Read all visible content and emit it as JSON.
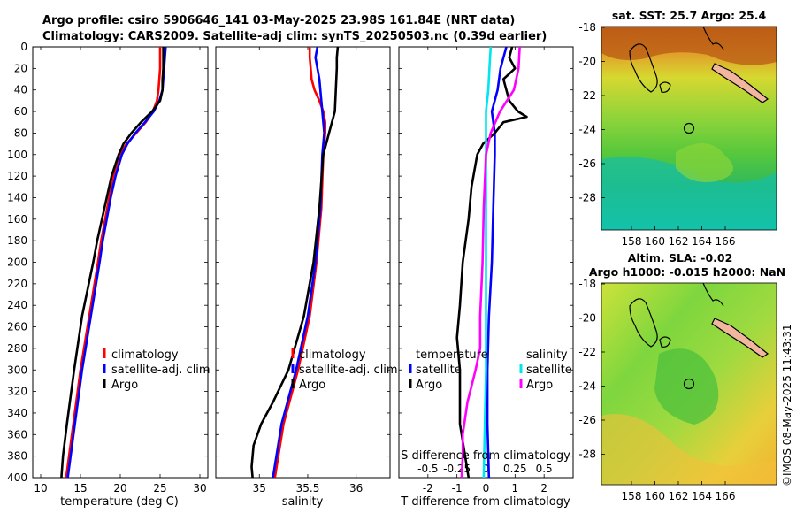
{
  "title": {
    "line1": "Argo profile: csiro 5906646_141 03-May-2025 23.98S 161.84E (NRT data)",
    "line2": "Climatology: CARS2009. Satellite-adj clim: synTS_20250503.nc (0.39d earlier)"
  },
  "colors": {
    "climatology": "#ff0000",
    "satellite_adj": "#0000ff",
    "argo": "#000000",
    "salinity_satellite": "#00e5ee",
    "salinity_argo": "#ff00ff"
  },
  "chart_data": [
    {
      "id": "temperature",
      "type": "line",
      "xlabel": "temperature (deg C)",
      "ylabel": "",
      "xlim": [
        9,
        31
      ],
      "ylim": [
        400,
        0
      ],
      "xticks": [
        10,
        15,
        20,
        25,
        30
      ],
      "yticks": [
        0,
        20,
        40,
        60,
        80,
        100,
        120,
        140,
        160,
        180,
        200,
        220,
        240,
        260,
        280,
        300,
        320,
        340,
        360,
        380,
        400
      ],
      "legend": [
        "climatology",
        "satellite-adj. clim",
        "Argo"
      ],
      "series": [
        {
          "name": "climatology",
          "color": "#ff0000",
          "depth": [
            0,
            10,
            20,
            30,
            40,
            50,
            60,
            70,
            80,
            90,
            100,
            120,
            140,
            160,
            180,
            200,
            250,
            300,
            350,
            400
          ],
          "values": [
            25.0,
            25.0,
            25.0,
            24.9,
            24.8,
            24.6,
            24.1,
            23.2,
            22.0,
            20.8,
            19.9,
            19.1,
            18.6,
            18.1,
            17.6,
            17.2,
            16.1,
            15.0,
            14.1,
            13.2
          ]
        },
        {
          "name": "satellite-adj. clim",
          "color": "#0000ff",
          "depth": [
            0,
            10,
            20,
            30,
            40,
            50,
            60,
            70,
            80,
            90,
            100,
            120,
            140,
            160,
            180,
            200,
            250,
            300,
            350,
            400
          ],
          "values": [
            25.7,
            25.6,
            25.5,
            25.4,
            25.3,
            24.9,
            24.2,
            23.1,
            21.9,
            20.9,
            20.2,
            19.4,
            18.8,
            18.3,
            17.8,
            17.4,
            16.3,
            15.2,
            14.3,
            13.4
          ]
        },
        {
          "name": "Argo",
          "color": "#000000",
          "depth": [
            0,
            10,
            20,
            30,
            40,
            50,
            60,
            70,
            80,
            90,
            100,
            120,
            140,
            160,
            180,
            200,
            250,
            280,
            300,
            350,
            380,
            400
          ],
          "values": [
            25.4,
            25.4,
            25.4,
            25.3,
            25.3,
            25.0,
            24.0,
            22.6,
            21.4,
            20.4,
            19.8,
            18.9,
            18.3,
            17.7,
            17.1,
            16.6,
            15.2,
            14.6,
            14.2,
            13.3,
            12.8,
            12.6
          ]
        }
      ]
    },
    {
      "id": "salinity",
      "type": "line",
      "xlabel": "salinity",
      "ylabel": "",
      "xlim": [
        34.55,
        36.35
      ],
      "ylim": [
        400,
        0
      ],
      "xticks": [
        35,
        35.5,
        36
      ],
      "legend": [
        "climatology",
        "satellite-adj. clim",
        "Argo"
      ],
      "series": [
        {
          "name": "climatology",
          "color": "#ff0000",
          "depth": [
            0,
            10,
            20,
            30,
            40,
            50,
            60,
            70,
            80,
            90,
            100,
            150,
            200,
            250,
            300,
            350,
            400
          ],
          "values": [
            35.52,
            35.52,
            35.53,
            35.54,
            35.57,
            35.62,
            35.66,
            35.68,
            35.68,
            35.67,
            35.66,
            35.64,
            35.59,
            35.52,
            35.4,
            35.25,
            35.16
          ]
        },
        {
          "name": "satellite-adj. clim",
          "color": "#0000ff",
          "depth": [
            0,
            10,
            20,
            30,
            40,
            50,
            60,
            70,
            80,
            90,
            100,
            150,
            200,
            250,
            300,
            350,
            400
          ],
          "values": [
            35.6,
            35.58,
            35.6,
            35.62,
            35.63,
            35.64,
            35.65,
            35.66,
            35.67,
            35.66,
            35.65,
            35.63,
            35.58,
            35.5,
            35.38,
            35.23,
            35.14
          ]
        },
        {
          "name": "Argo",
          "color": "#000000",
          "depth": [
            0,
            10,
            20,
            40,
            60,
            80,
            90,
            100,
            150,
            200,
            250,
            300,
            330,
            350,
            370,
            390,
            400
          ],
          "values": [
            35.81,
            35.8,
            35.8,
            35.79,
            35.78,
            35.72,
            35.69,
            35.66,
            35.62,
            35.56,
            35.46,
            35.3,
            35.14,
            35.02,
            34.94,
            34.92,
            34.93
          ]
        }
      ]
    },
    {
      "id": "differences",
      "type": "line",
      "xlabel": "T difference from climatology",
      "top_xlabel": "S difference from climatology",
      "xlim": [
        -3,
        3
      ],
      "xticks": [
        -2,
        -1,
        0,
        1,
        2
      ],
      "top_xticks": [
        "-0.5",
        "-0.25",
        "0",
        "0.25",
        "0.5"
      ],
      "legend_groups": [
        "temperature",
        "salinity"
      ],
      "legend": [
        "satellite",
        "Argo",
        "satellite",
        "Argo"
      ],
      "series": [
        {
          "name": "T satellite",
          "color": "#0000ff",
          "depth": [
            0,
            10,
            20,
            40,
            60,
            80,
            100,
            150,
            200,
            250,
            300,
            350,
            400
          ],
          "values": [
            0.7,
            0.6,
            0.5,
            0.4,
            0.2,
            0.3,
            0.3,
            0.25,
            0.2,
            0.1,
            0.05,
            0.05,
            0.1
          ]
        },
        {
          "name": "T Argo",
          "color": "#000000",
          "depth": [
            0,
            10,
            20,
            30,
            40,
            50,
            60,
            65,
            70,
            80,
            90,
            100,
            130,
            160,
            200,
            240,
            270,
            300,
            350,
            400
          ],
          "values": [
            0.9,
            0.8,
            1.0,
            0.6,
            0.7,
            0.8,
            1.1,
            1.4,
            0.6,
            0.3,
            -0.1,
            -0.3,
            -0.5,
            -0.6,
            -0.8,
            -0.9,
            -1.0,
            -0.9,
            -0.9,
            -0.6
          ]
        },
        {
          "name": "S satellite",
          "color": "#00e5ee",
          "depth": [
            0,
            20,
            40,
            60,
            80,
            100,
            200,
            300,
            350,
            400
          ],
          "values": [
            0.04,
            0.03,
            0.02,
            0.0,
            0.0,
            0.0,
            0.0,
            0.0,
            -0.01,
            -0.02
          ]
        },
        {
          "name": "S Argo",
          "color": "#ff00ff",
          "depth": [
            0,
            20,
            40,
            60,
            80,
            100,
            150,
            200,
            250,
            280,
            300,
            330,
            360,
            380,
            400
          ],
          "values": [
            0.29,
            0.28,
            0.24,
            0.12,
            0.04,
            0.0,
            -0.02,
            -0.03,
            -0.05,
            -0.05,
            -0.09,
            -0.16,
            -0.2,
            -0.2,
            -0.21
          ]
        }
      ]
    }
  ],
  "maps": {
    "sst": {
      "title": "sat. SST: 25.7 Argo: 25.4",
      "xticks": [
        158,
        160,
        162,
        164,
        166
      ],
      "yticks": [
        -18,
        -20,
        -22,
        -24,
        -26,
        -28
      ]
    },
    "sla": {
      "title_line1": "Altim. SLA: -0.02",
      "title_line2": "Argo h1000: -0.015 h2000: NaN",
      "xticks": [
        158,
        160,
        162,
        164,
        166
      ],
      "yticks": [
        -18,
        -20,
        -22,
        -24,
        -26,
        -28
      ]
    }
  },
  "watermark": "©IMOS 08-May-2025 11:43:31"
}
